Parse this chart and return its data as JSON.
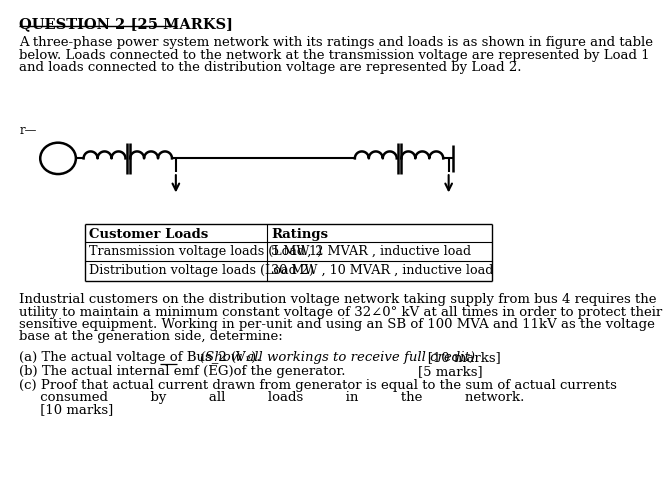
{
  "title": "QUESTION 2 [25 MARKS]",
  "bg_color": "#ffffff",
  "text_color": "#000000",
  "para1_lines": [
    "A three-phase power system network with its ratings and loads is as shown in figure and table",
    "below. Loads connected to the network at the transmission voltage are represented by Load 1",
    "and loads connected to the distribution voltage are represented by Load 2."
  ],
  "table_headers": [
    "Customer Loads",
    "Ratings"
  ],
  "table_rows": [
    [
      "Transmission voltage loads (Load 1)",
      "5 MW, 2 MVAR , inductive load"
    ],
    [
      "Distribution voltage loads (Load 2)",
      "30 MW , 10 MVAR , inductive load"
    ]
  ],
  "para2_lines": [
    "Industrial customers on the distribution voltage network taking supply from bus 4 requires the",
    "utility to maintain a minimum constant voltage of 32∠0° kV at all times in order to protect their",
    "sensitive equipment. Working in per-unit and using an SB of 100 MVA and 11kV as the voltage",
    "base at the generation side, determine:"
  ],
  "part_a_normal": "(a) The actual voltage of Bus_2 (V₂).    ",
  "part_a_italic": "(Show all workings to receive full credit)",
  "part_a_marks": "   [10 marks]",
  "part_b": "(b) The actual internal emf (EG)of the generator.",
  "part_b_marks": "[5 marks]",
  "part_c_line1": "(c) Proof that actual current drawn from generator is equal to the sum of actual currents",
  "part_c_line2": "     consumed          by          all          loads          in          the          network.",
  "part_c_line3": "     [10 marks]"
}
